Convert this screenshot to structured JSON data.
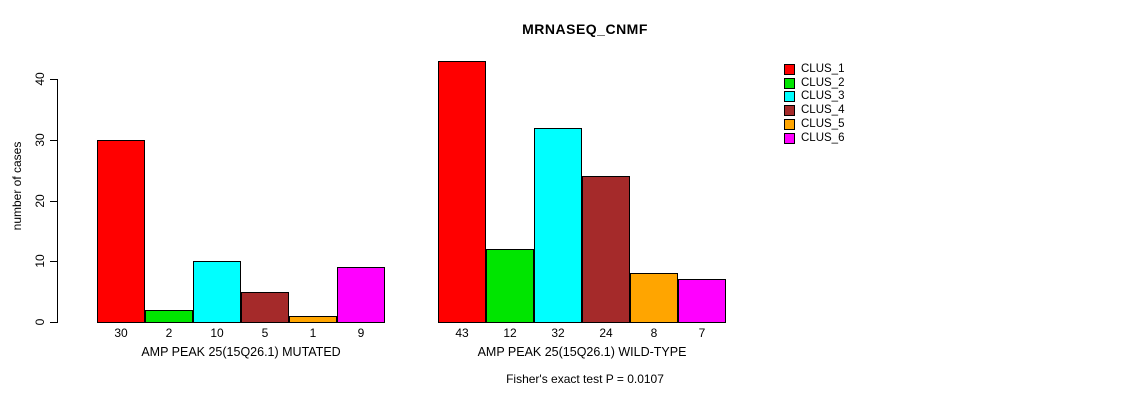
{
  "chart_data": {
    "type": "bar",
    "title": "MRNASEQ_CNMF",
    "ylabel": "number of cases",
    "subtitle": "Fisher's exact test P = 0.0107",
    "ylim": [
      0,
      40
    ],
    "yticks": [
      0,
      10,
      20,
      30,
      40
    ],
    "grid": false,
    "legend_position": "right",
    "groups": [
      {
        "label": "AMP PEAK 25(15Q26.1) MUTATED",
        "values": [
          30,
          2,
          10,
          5,
          1,
          9
        ]
      },
      {
        "label": "AMP PEAK 25(15Q26.1) WILD-TYPE",
        "values": [
          43,
          12,
          32,
          24,
          8,
          7
        ]
      }
    ],
    "series": [
      {
        "name": "CLUS_1",
        "color": "#FF0000"
      },
      {
        "name": "CLUS_2",
        "color": "#00E500"
      },
      {
        "name": "CLUS_3",
        "color": "#00FFFF"
      },
      {
        "name": "CLUS_4",
        "color": "#A52A2A"
      },
      {
        "name": "CLUS_5",
        "color": "#FFA500"
      },
      {
        "name": "CLUS_6",
        "color": "#FF00FF"
      }
    ]
  }
}
